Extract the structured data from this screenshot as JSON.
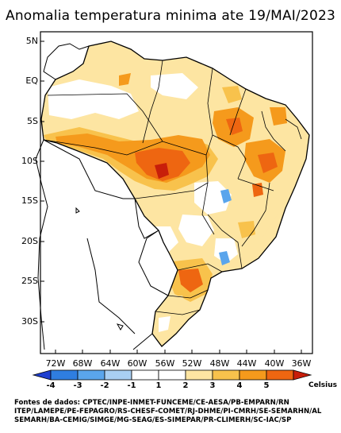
{
  "title": "Anomalia temperatura minima ate 19/MAI/2023",
  "y_axis_labels": [
    "5N",
    "EQ",
    "5S",
    "10S",
    "15S",
    "20S",
    "25S",
    "30S"
  ],
  "x_axis_labels": [
    "72W",
    "68W",
    "64W",
    "60W",
    "56W",
    "52W",
    "48W",
    "44W",
    "40W",
    "36W"
  ],
  "colorbar": {
    "labels": [
      "-4",
      "-3",
      "-2",
      "-1",
      "1",
      "2",
      "3",
      "4",
      "5"
    ],
    "unit": "Celsius",
    "colors": [
      "#1f3fcf",
      "#2f7ee0",
      "#5aa5ec",
      "#a9cff3",
      "#ffffff",
      "#fde5a2",
      "#f8c24c",
      "#f59a1c",
      "#ee6611",
      "#c81e0a"
    ]
  },
  "source": {
    "line1": "Fontes de dados: CPTEC/INPE-INMET-FUNCEME/CE-AESA/PB-EMPARN/RN",
    "line2": "ITEP/LAMEPE/PE-FEPAGRO/RS-CHESF-COMET/RJ-DHME/PI-CMRH/SE-SEMARHN/AL",
    "line3": "SEMARH/BA-CEMIG/SIMGE/MG-SEAG/ES-SIMEPAR/PR-CLIMERH/SC-IAC/SP"
  }
}
